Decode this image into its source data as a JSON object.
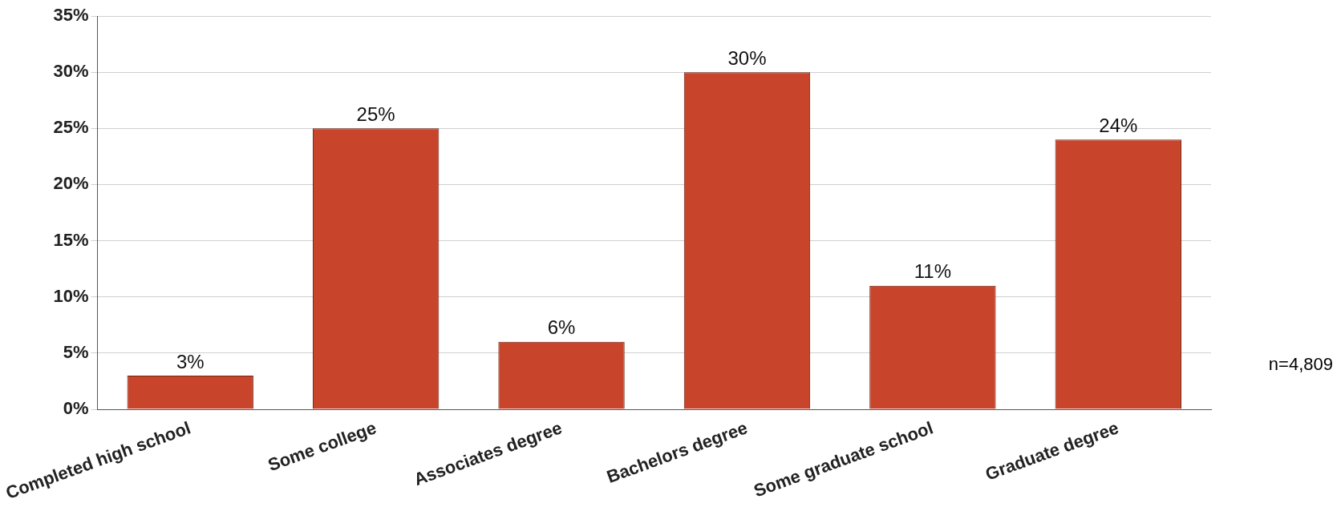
{
  "chart_data": {
    "type": "bar",
    "categories": [
      "Completed high school",
      "Some college",
      "Associates degree",
      "Bachelors degree",
      "Some graduate school",
      "Graduate degree"
    ],
    "values": [
      3,
      25,
      6,
      30,
      11,
      24
    ],
    "value_labels": [
      "3%",
      "25%",
      "6%",
      "30%",
      "11%",
      "24%"
    ],
    "color": "#c8452c",
    "ylim": [
      0,
      35
    ],
    "yticks": [
      {
        "value": 0,
        "label": "0%"
      },
      {
        "value": 5,
        "label": "5%"
      },
      {
        "value": 10,
        "label": "10%"
      },
      {
        "value": 15,
        "label": "15%"
      },
      {
        "value": 20,
        "label": "20%"
      },
      {
        "value": 25,
        "label": "25%"
      },
      {
        "value": 30,
        "label": "30%"
      },
      {
        "value": 35,
        "label": "35%"
      }
    ],
    "grid": "y",
    "annotations": [
      "n=4,809"
    ]
  }
}
